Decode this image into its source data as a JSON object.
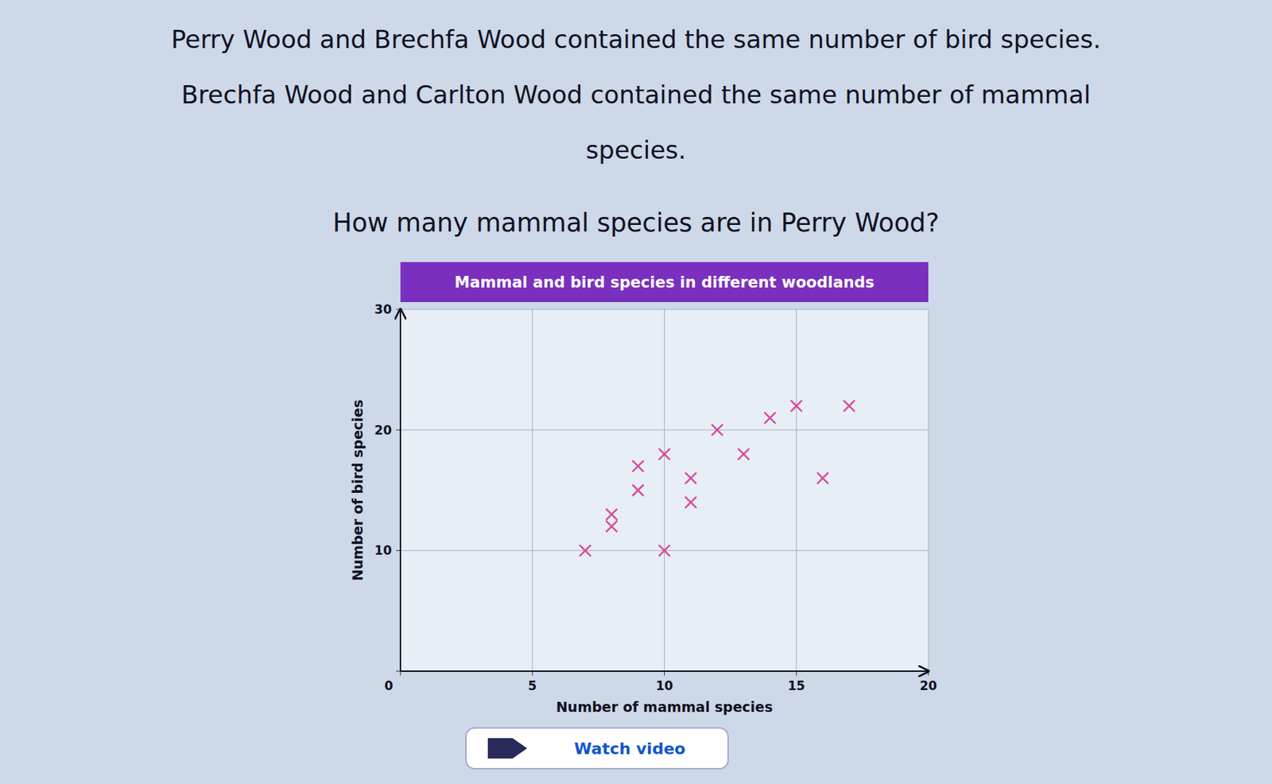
{
  "chart_data": {
    "type": "scatter",
    "title": "Mammal and bird species in different woodlands",
    "xlabel": "Number of mammal species",
    "ylabel": "Number of bird species",
    "annotations": [
      "Perry Wood and Brechfa Wood contained the same number of bird species.",
      "Brechfa Wood and Carlton Wood contained the same number of mammal",
      "species.",
      "How many mammal species are in Perry Wood?",
      "Watch video"
    ],
    "x": [
      7,
      8,
      8,
      9,
      9,
      10,
      10,
      11,
      11,
      12,
      13,
      14,
      15,
      16,
      17
    ],
    "values": [
      10,
      12,
      13,
      15,
      17,
      10,
      18,
      14,
      16,
      20,
      18,
      21,
      22,
      16,
      22
    ],
    "color": "#d44fa0",
    "marker": "x",
    "xlim": [
      0,
      20
    ],
    "ylim": [
      0,
      30
    ],
    "xticks": [
      0,
      5,
      10,
      15,
      20
    ],
    "yticks": [
      0,
      10,
      20,
      30
    ],
    "grid": true
  }
}
